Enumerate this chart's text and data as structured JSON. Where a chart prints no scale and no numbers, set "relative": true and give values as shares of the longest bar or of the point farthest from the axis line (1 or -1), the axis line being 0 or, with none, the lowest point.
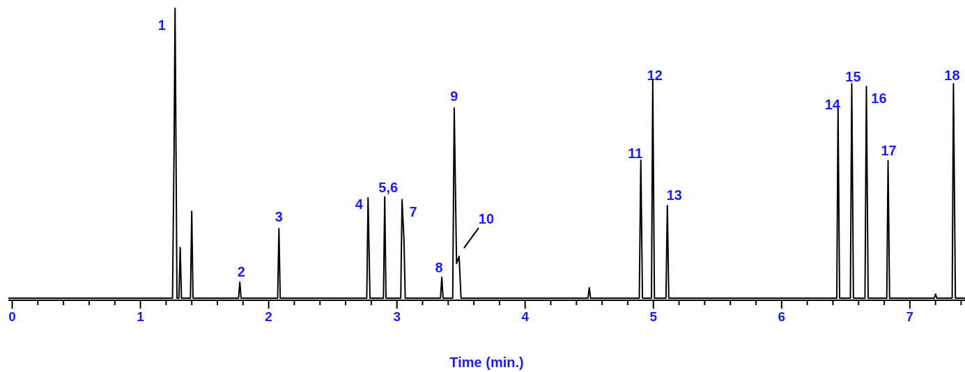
{
  "chart_data": {
    "type": "line",
    "relative": true,
    "xlabel": "Time (min.)",
    "xlim": [
      -0.03,
      7.43
    ],
    "xticks": [
      0,
      {
        "value": 0.2,
        "label": null
      },
      {
        "value": 0.4,
        "label": null
      },
      {
        "value": 0.6,
        "label": null
      },
      {
        "value": 0.8,
        "label": null
      },
      1,
      {
        "value": 1.2,
        "label": null
      },
      {
        "value": 1.4,
        "label": null
      },
      {
        "value": 1.6,
        "label": null
      },
      {
        "value": 1.8,
        "label": null
      },
      2,
      {
        "value": 2.2,
        "label": null
      },
      {
        "value": 2.4,
        "label": null
      },
      {
        "value": 2.6,
        "label": null
      },
      {
        "value": 2.8,
        "label": null
      },
      3,
      {
        "value": 3.2,
        "label": null
      },
      {
        "value": 3.4,
        "label": null
      },
      {
        "value": 3.6,
        "label": null
      },
      {
        "value": 3.8,
        "label": null
      },
      4,
      {
        "value": 4.2,
        "label": null
      },
      {
        "value": 4.4,
        "label": null
      },
      {
        "value": 4.6,
        "label": null
      },
      {
        "value": 4.8,
        "label": null
      },
      5,
      {
        "value": 5.2,
        "label": null
      },
      {
        "value": 5.4,
        "label": null
      },
      {
        "value": 5.6,
        "label": null
      },
      {
        "value": 5.8,
        "label": null
      },
      6,
      {
        "value": 6.2,
        "label": null
      },
      {
        "value": 6.4,
        "label": null
      },
      {
        "value": 6.6,
        "label": null
      },
      {
        "value": 6.8,
        "label": null
      },
      7,
      {
        "value": 7.2,
        "label": null
      },
      {
        "value": 7.4,
        "label": null
      }
    ],
    "series": [
      {
        "color": "#000000",
        "x": [
          -0.03,
          1.25,
          1.262,
          1.27,
          1.285,
          1.3,
          1.31,
          1.32,
          1.39,
          1.4,
          1.41,
          1.765,
          1.775,
          1.785,
          2.07,
          2.08,
          2.09,
          2.765,
          2.775,
          2.79,
          2.895,
          2.905,
          2.915,
          3.03,
          3.04,
          3.055,
          3.065,
          3.34,
          3.35,
          3.36,
          3.435,
          3.447,
          3.465,
          3.485,
          3.5,
          4.49,
          4.5,
          4.51,
          4.89,
          4.902,
          4.915,
          4.985,
          4.995,
          5.008,
          5.098,
          5.109,
          5.12,
          6.43,
          6.44,
          6.452,
          6.536,
          6.547,
          6.56,
          6.65,
          6.661,
          6.675,
          6.82,
          6.83,
          6.842,
          7.19,
          7.2,
          7.21,
          7.33,
          7.34,
          7.355,
          7.43
        ],
        "values": [
          0,
          0,
          0.5,
          1,
          0,
          0,
          0.175,
          0,
          0,
          0.3,
          0,
          0,
          0.055,
          0,
          0,
          0.24,
          0,
          0,
          0.346,
          0,
          0,
          0.35,
          0,
          0,
          0.34,
          0.2,
          0,
          0,
          0.072,
          0,
          0,
          0.656,
          0.12,
          0.144,
          0,
          0,
          0.036,
          0,
          0,
          0.476,
          0,
          0,
          0.755,
          0,
          0,
          0.32,
          0,
          0,
          0.656,
          0,
          0,
          0.74,
          0,
          0,
          0.73,
          0,
          0,
          0.474,
          0,
          0,
          0.014,
          0,
          0,
          0.74,
          0,
          0
        ]
      }
    ],
    "annotations": [
      {
        "text": "1",
        "x": 1.27,
        "y": 1
      },
      {
        "text": "2",
        "x": 1.775,
        "y": 0.055
      },
      {
        "text": "3",
        "x": 2.08,
        "y": 0.24
      },
      {
        "text": "4",
        "x": 2.775,
        "y": 0.346
      },
      {
        "text": "5,6",
        "x": 2.905,
        "y": 0.35
      },
      {
        "text": "7",
        "x": 3.04,
        "y": 0.34
      },
      {
        "text": "8",
        "x": 3.35,
        "y": 0.072
      },
      {
        "text": "9",
        "x": 3.447,
        "y": 0.656
      },
      {
        "text": "10",
        "x": 3.485,
        "y": 0.144
      },
      {
        "text": "11",
        "x": 4.902,
        "y": 0.476
      },
      {
        "text": "12",
        "x": 4.995,
        "y": 0.755
      },
      {
        "text": "13",
        "x": 5.109,
        "y": 0.32
      },
      {
        "text": "14",
        "x": 6.44,
        "y": 0.656
      },
      {
        "text": "15",
        "x": 6.547,
        "y": 0.74
      },
      {
        "text": "16",
        "x": 6.661,
        "y": 0.73
      },
      {
        "text": "17",
        "x": 6.83,
        "y": 0.474
      },
      {
        "text": "18",
        "x": 7.34,
        "y": 0.74
      }
    ]
  }
}
